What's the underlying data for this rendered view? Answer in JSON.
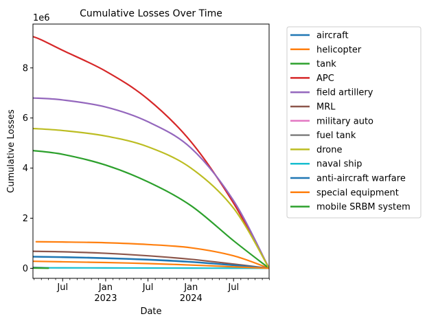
{
  "chart_data": {
    "type": "line",
    "title": "Cumulative Losses Over Time",
    "xlabel": "Date",
    "ylabel": "Cumulative Losses",
    "y_multiplier": "1e6",
    "ylim": [
      -400000,
      9750000
    ],
    "xlim": [
      "2022-02-24",
      "2024-11-30"
    ],
    "y_ticks": [
      {
        "value": 0,
        "label": "0"
      },
      {
        "value": 2000000,
        "label": "2"
      },
      {
        "value": 4000000,
        "label": "4"
      },
      {
        "value": 6000000,
        "label": "6"
      },
      {
        "value": 8000000,
        "label": "8"
      }
    ],
    "x_major_ticks": [
      {
        "date": "2022-07-01",
        "label": "Jul",
        "sub": ""
      },
      {
        "date": "2023-01-01",
        "label": "Jan",
        "sub": "2023"
      },
      {
        "date": "2023-07-01",
        "label": "Jul",
        "sub": ""
      },
      {
        "date": "2024-01-01",
        "label": "Jan",
        "sub": "2024"
      },
      {
        "date": "2024-07-01",
        "label": "Jul",
        "sub": ""
      }
    ],
    "x_minor_ticks": [
      "2022-03-01",
      "2022-04-01",
      "2022-05-01",
      "2022-06-01",
      "2022-08-01",
      "2022-09-01",
      "2022-10-01",
      "2022-11-01",
      "2022-12-01",
      "2023-02-01",
      "2023-03-01",
      "2023-04-01",
      "2023-05-01",
      "2023-06-01",
      "2023-08-01",
      "2023-09-01",
      "2023-10-01",
      "2023-11-01",
      "2023-12-01",
      "2024-02-01",
      "2024-03-01",
      "2024-04-01",
      "2024-05-01",
      "2024-06-01",
      "2024-08-01",
      "2024-09-01",
      "2024-10-01",
      "2024-11-01",
      "2024-12-01"
    ],
    "grid": false,
    "legend_position": "outside-right",
    "series": [
      {
        "name": "aircraft",
        "color": "#1f77b4",
        "points": [
          [
            "2022-02-24",
            460000
          ],
          [
            "2022-07-01",
            440000
          ],
          [
            "2023-01-01",
            400000
          ],
          [
            "2023-07-01",
            340000
          ],
          [
            "2024-01-01",
            250000
          ],
          [
            "2024-07-01",
            120000
          ],
          [
            "2024-11-30",
            0
          ]
        ]
      },
      {
        "name": "helicopter",
        "color": "#ff7f0e",
        "points": [
          [
            "2022-03-10",
            1060000
          ],
          [
            "2022-07-01",
            1050000
          ],
          [
            "2023-01-01",
            1020000
          ],
          [
            "2023-07-01",
            950000
          ],
          [
            "2024-01-01",
            820000
          ],
          [
            "2024-07-01",
            500000
          ],
          [
            "2024-11-30",
            0
          ]
        ]
      },
      {
        "name": "tank",
        "color": "#2ca02c",
        "points": [
          [
            "2022-02-24",
            4700000
          ],
          [
            "2022-07-01",
            4550000
          ],
          [
            "2023-01-01",
            4120000
          ],
          [
            "2023-07-01",
            3450000
          ],
          [
            "2024-01-01",
            2500000
          ],
          [
            "2024-07-01",
            1100000
          ],
          [
            "2024-11-30",
            0
          ]
        ]
      },
      {
        "name": "APC",
        "color": "#d62728",
        "points": [
          [
            "2022-02-24",
            9250000
          ],
          [
            "2022-04-01",
            9120000
          ],
          [
            "2022-07-01",
            8700000
          ],
          [
            "2023-01-01",
            7870000
          ],
          [
            "2023-07-01",
            6750000
          ],
          [
            "2024-01-01",
            5050000
          ],
          [
            "2024-07-01",
            2600000
          ],
          [
            "2024-11-30",
            0
          ]
        ]
      },
      {
        "name": "field artillery",
        "color": "#9467bd",
        "points": [
          [
            "2022-02-24",
            6800000
          ],
          [
            "2022-07-01",
            6720000
          ],
          [
            "2023-01-01",
            6440000
          ],
          [
            "2023-07-01",
            5850000
          ],
          [
            "2024-01-01",
            4800000
          ],
          [
            "2024-07-01",
            2700000
          ],
          [
            "2024-11-30",
            0
          ]
        ]
      },
      {
        "name": "MRL",
        "color": "#8c564b",
        "points": [
          [
            "2022-02-24",
            680000
          ],
          [
            "2022-07-01",
            660000
          ],
          [
            "2023-01-01",
            600000
          ],
          [
            "2023-07-01",
            500000
          ],
          [
            "2024-01-01",
            360000
          ],
          [
            "2024-07-01",
            170000
          ],
          [
            "2024-11-30",
            0
          ]
        ]
      },
      {
        "name": "military auto",
        "color": "#e377c2",
        "points": [
          [
            "2022-02-24",
            30000
          ],
          [
            "2022-04-01",
            20000
          ],
          [
            "2022-05-01",
            15000
          ]
        ]
      },
      {
        "name": "fuel tank",
        "color": "#7f7f7f",
        "points": [
          [
            "2022-02-24",
            40000
          ],
          [
            "2022-04-01",
            30000
          ],
          [
            "2022-05-01",
            20000
          ]
        ]
      },
      {
        "name": "drone",
        "color": "#bcbd22",
        "points": [
          [
            "2022-02-24",
            5580000
          ],
          [
            "2022-07-01",
            5500000
          ],
          [
            "2023-01-01",
            5280000
          ],
          [
            "2023-07-01",
            4850000
          ],
          [
            "2024-01-01",
            4000000
          ],
          [
            "2024-07-01",
            2400000
          ],
          [
            "2024-11-30",
            0
          ]
        ]
      },
      {
        "name": "naval ship",
        "color": "#17becf",
        "points": [
          [
            "2022-02-24",
            20000
          ],
          [
            "2022-07-01",
            18000
          ],
          [
            "2023-01-01",
            15000
          ],
          [
            "2023-07-01",
            12000
          ],
          [
            "2024-01-01",
            8000
          ],
          [
            "2024-07-01",
            4000
          ],
          [
            "2024-11-30",
            0
          ]
        ]
      },
      {
        "name": "anti-aircraft warfare",
        "color": "#1f77b4",
        "points": [
          [
            "2022-02-24",
            470000
          ],
          [
            "2022-07-01",
            450000
          ],
          [
            "2023-01-01",
            410000
          ],
          [
            "2023-07-01",
            350000
          ],
          [
            "2024-01-01",
            260000
          ],
          [
            "2024-07-01",
            125000
          ],
          [
            "2024-11-30",
            0
          ]
        ]
      },
      {
        "name": "special equipment",
        "color": "#ff7f0e",
        "points": [
          [
            "2022-02-24",
            280000
          ],
          [
            "2022-07-01",
            260000
          ],
          [
            "2023-01-01",
            230000
          ],
          [
            "2023-07-01",
            190000
          ],
          [
            "2024-01-01",
            130000
          ],
          [
            "2024-07-01",
            60000
          ],
          [
            "2024-11-30",
            0
          ]
        ]
      },
      {
        "name": "mobile SRBM system",
        "color": "#2ca02c",
        "points": [
          [
            "2022-02-24",
            10000
          ],
          [
            "2022-05-01",
            5000
          ]
        ]
      }
    ]
  }
}
